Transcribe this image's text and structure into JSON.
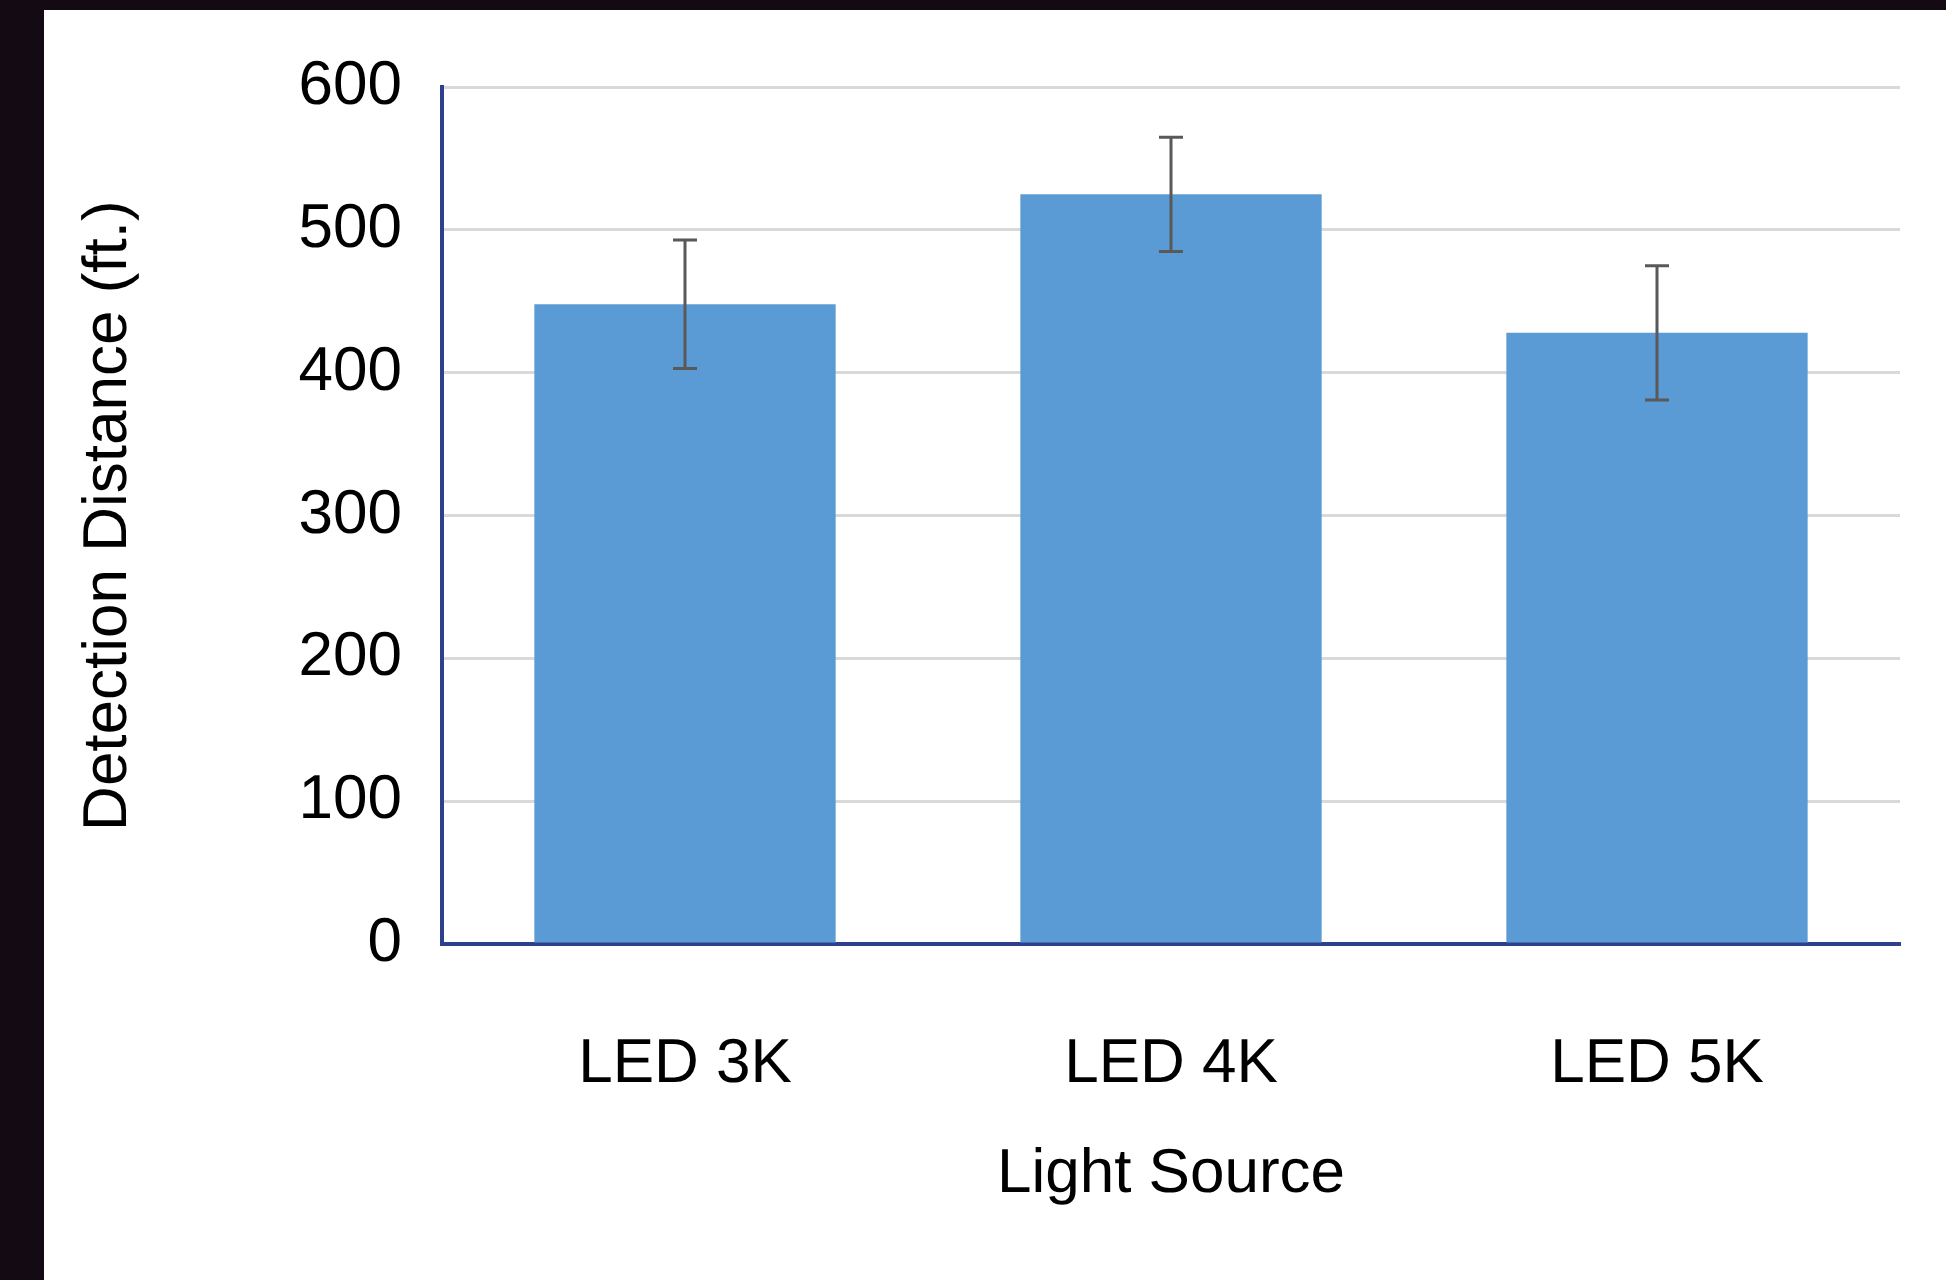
{
  "chart_data": {
    "type": "bar",
    "xlabel": "Light Source",
    "ylabel": "Detection Distance (ft.)",
    "categories": [
      "LED 3K",
      "LED 4K",
      "LED 5K"
    ],
    "values": [
      448,
      525,
      428
    ],
    "errors": [
      45,
      40,
      47
    ],
    "color": "#5b9bd5",
    "ylim": [
      0,
      600
    ],
    "yticks": [
      0,
      100,
      200,
      300,
      400,
      500,
      600
    ],
    "grid": "y",
    "legend": false
  }
}
